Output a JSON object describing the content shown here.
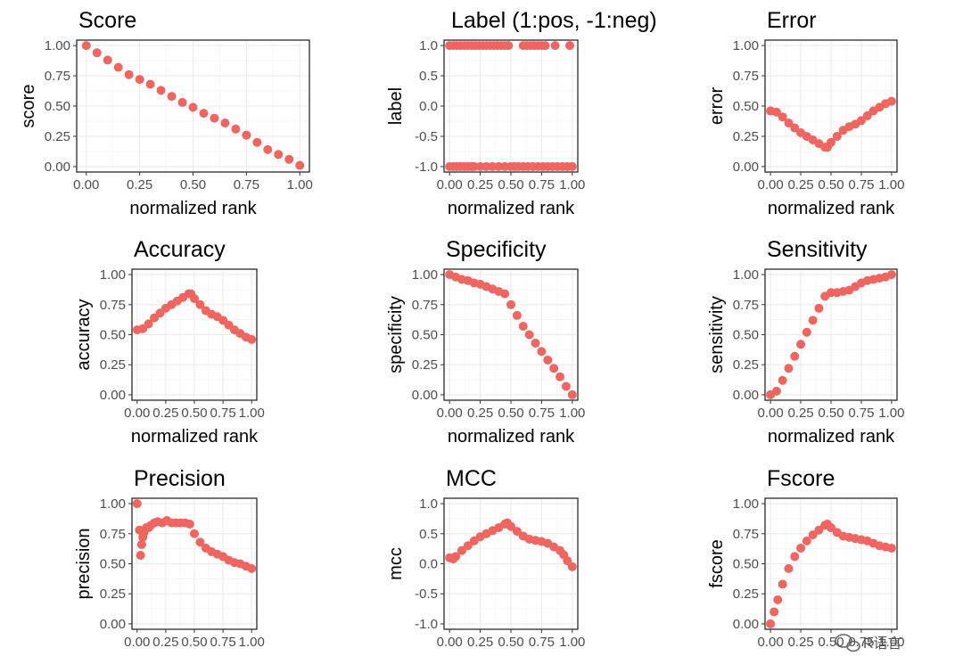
{
  "chart_data": [
    {
      "type": "scatter",
      "title": "Score",
      "xlabel": "normalized rank",
      "ylabel": "score",
      "xlim": [
        0,
        1
      ],
      "ylim": [
        0,
        1
      ],
      "xticks": [
        "0.00",
        "0.25",
        "0.50",
        "0.75",
        "1.00"
      ],
      "yticks": [
        "0.00",
        "0.25",
        "0.50",
        "0.75",
        "1.00"
      ],
      "series": [
        {
          "x": [
            0.0,
            0.05,
            0.1,
            0.15,
            0.2,
            0.25,
            0.3,
            0.35,
            0.4,
            0.45,
            0.5,
            0.55,
            0.6,
            0.65,
            0.7,
            0.75,
            0.8,
            0.85,
            0.9,
            0.95,
            1.0
          ],
          "y": [
            1.0,
            0.94,
            0.88,
            0.82,
            0.76,
            0.72,
            0.68,
            0.63,
            0.58,
            0.53,
            0.49,
            0.44,
            0.4,
            0.36,
            0.31,
            0.26,
            0.2,
            0.14,
            0.1,
            0.06,
            0.01
          ]
        }
      ]
    },
    {
      "type": "scatter",
      "title": "Label (1:pos, -1:neg)",
      "xlabel": "normalized rank",
      "ylabel": "label",
      "xlim": [
        0,
        1
      ],
      "ylim": [
        -1,
        1
      ],
      "xticks": [
        "0.00",
        "0.25",
        "0.50",
        "0.75",
        "1.00"
      ],
      "yticks": [
        "-1.0",
        "-0.5",
        "0.0",
        "0.5",
        "1.0"
      ],
      "series": [
        {
          "x": [
            0.0,
            0.03,
            0.06,
            0.09,
            0.12,
            0.15,
            0.18,
            0.21,
            0.24,
            0.27,
            0.3,
            0.33,
            0.36,
            0.39,
            0.42,
            0.45,
            0.48,
            0.6,
            0.63,
            0.66,
            0.69,
            0.72,
            0.75,
            0.78,
            0.86,
            0.98
          ],
          "y": [
            1,
            1,
            1,
            1,
            1,
            1,
            1,
            1,
            1,
            1,
            1,
            1,
            1,
            1,
            1,
            1,
            1,
            1,
            1,
            1,
            1,
            1,
            1,
            1,
            1,
            1
          ]
        },
        {
          "x": [
            0.0,
            0.03,
            0.06,
            0.09,
            0.12,
            0.15,
            0.18,
            0.2,
            0.25,
            0.3,
            0.35,
            0.4,
            0.45,
            0.5,
            0.53,
            0.56,
            0.6,
            0.64,
            0.68,
            0.72,
            0.76,
            0.8,
            0.84,
            0.88,
            0.92,
            0.96,
            1.0
          ],
          "y": [
            -1,
            -1,
            -1,
            -1,
            -1,
            -1,
            -1,
            -1,
            -1,
            -1,
            -1,
            -1,
            -1,
            -1,
            -1,
            -1,
            -1,
            -1,
            -1,
            -1,
            -1,
            -1,
            -1,
            -1,
            -1,
            -1,
            -1
          ]
        }
      ]
    },
    {
      "type": "scatter",
      "title": "Error",
      "xlabel": "normalized rank",
      "ylabel": "error",
      "xlim": [
        0,
        1
      ],
      "ylim": [
        0,
        1
      ],
      "xticks": [
        "0.00",
        "0.25",
        "0.50",
        "0.75",
        "1.00"
      ],
      "yticks": [
        "0.00",
        "0.25",
        "0.50",
        "0.75",
        "1.00"
      ],
      "series": [
        {
          "x": [
            0.0,
            0.05,
            0.1,
            0.15,
            0.2,
            0.25,
            0.3,
            0.35,
            0.4,
            0.45,
            0.47,
            0.5,
            0.55,
            0.6,
            0.65,
            0.7,
            0.75,
            0.8,
            0.85,
            0.9,
            0.95,
            1.0
          ],
          "y": [
            0.46,
            0.45,
            0.41,
            0.36,
            0.32,
            0.28,
            0.25,
            0.22,
            0.19,
            0.16,
            0.16,
            0.2,
            0.25,
            0.3,
            0.33,
            0.35,
            0.38,
            0.42,
            0.46,
            0.49,
            0.52,
            0.54
          ]
        }
      ]
    },
    {
      "type": "scatter",
      "title": "Accuracy",
      "xlabel": "normalized rank",
      "ylabel": "accuracy",
      "xlim": [
        0,
        1
      ],
      "ylim": [
        0,
        1
      ],
      "xticks": [
        "0.00",
        "0.25",
        "0.50",
        "0.75",
        "1.00"
      ],
      "yticks": [
        "0.00",
        "0.25",
        "0.50",
        "0.75",
        "1.00"
      ],
      "series": [
        {
          "x": [
            0.0,
            0.05,
            0.1,
            0.15,
            0.2,
            0.25,
            0.3,
            0.35,
            0.4,
            0.45,
            0.47,
            0.5,
            0.55,
            0.6,
            0.65,
            0.7,
            0.75,
            0.8,
            0.85,
            0.9,
            0.95,
            1.0
          ],
          "y": [
            0.54,
            0.55,
            0.59,
            0.64,
            0.68,
            0.72,
            0.75,
            0.78,
            0.81,
            0.84,
            0.84,
            0.8,
            0.75,
            0.7,
            0.67,
            0.65,
            0.62,
            0.58,
            0.54,
            0.51,
            0.48,
            0.46
          ]
        }
      ]
    },
    {
      "type": "scatter",
      "title": "Specificity",
      "xlabel": "normalized rank",
      "ylabel": "specificity",
      "xlim": [
        0,
        1
      ],
      "ylim": [
        0,
        1
      ],
      "xticks": [
        "0.00",
        "0.25",
        "0.50",
        "0.75",
        "1.00"
      ],
      "yticks": [
        "0.00",
        "0.25",
        "0.50",
        "0.75",
        "1.00"
      ],
      "series": [
        {
          "x": [
            0.0,
            0.05,
            0.1,
            0.15,
            0.2,
            0.25,
            0.3,
            0.35,
            0.4,
            0.45,
            0.5,
            0.55,
            0.6,
            0.65,
            0.7,
            0.75,
            0.8,
            0.85,
            0.9,
            0.95,
            1.0
          ],
          "y": [
            1.0,
            0.98,
            0.96,
            0.95,
            0.93,
            0.92,
            0.9,
            0.88,
            0.86,
            0.84,
            0.75,
            0.66,
            0.57,
            0.5,
            0.43,
            0.36,
            0.29,
            0.22,
            0.15,
            0.07,
            0.0
          ]
        }
      ]
    },
    {
      "type": "scatter",
      "title": "Sensitivity",
      "xlabel": "normalized rank",
      "ylabel": "sensitivity",
      "xlim": [
        0,
        1
      ],
      "ylim": [
        0,
        1
      ],
      "xticks": [
        "0.00",
        "0.25",
        "0.50",
        "0.75",
        "1.00"
      ],
      "yticks": [
        "0.00",
        "0.25",
        "0.50",
        "0.75",
        "1.00"
      ],
      "series": [
        {
          "x": [
            0.0,
            0.05,
            0.1,
            0.15,
            0.2,
            0.25,
            0.3,
            0.35,
            0.4,
            0.45,
            0.5,
            0.55,
            0.6,
            0.65,
            0.7,
            0.75,
            0.8,
            0.85,
            0.9,
            0.95,
            1.0
          ],
          "y": [
            0.0,
            0.03,
            0.12,
            0.22,
            0.32,
            0.42,
            0.52,
            0.62,
            0.72,
            0.82,
            0.85,
            0.85,
            0.86,
            0.87,
            0.9,
            0.93,
            0.95,
            0.96,
            0.97,
            0.98,
            1.0
          ]
        }
      ]
    },
    {
      "type": "scatter",
      "title": "Precision",
      "xlabel": "normalized rank",
      "ylabel": "precision",
      "xlim": [
        0,
        1
      ],
      "ylim": [
        0,
        1
      ],
      "xticks": [
        "0.00",
        "0.25",
        "0.50",
        "0.75",
        "1.00"
      ],
      "yticks": [
        "0.00",
        "0.25",
        "0.50",
        "0.75",
        "1.00"
      ],
      "series": [
        {
          "x": [
            0.0,
            0.02,
            0.03,
            0.04,
            0.05,
            0.06,
            0.08,
            0.1,
            0.12,
            0.15,
            0.18,
            0.22,
            0.26,
            0.3,
            0.34,
            0.38,
            0.42,
            0.46,
            0.5,
            0.55,
            0.6,
            0.65,
            0.7,
            0.75,
            0.8,
            0.85,
            0.9,
            0.95,
            1.0
          ],
          "y": [
            1.0,
            0.78,
            0.57,
            0.66,
            0.72,
            0.76,
            0.8,
            0.8,
            0.82,
            0.84,
            0.85,
            0.84,
            0.86,
            0.84,
            0.84,
            0.84,
            0.84,
            0.83,
            0.75,
            0.68,
            0.63,
            0.6,
            0.58,
            0.56,
            0.53,
            0.51,
            0.5,
            0.48,
            0.46
          ]
        }
      ]
    },
    {
      "type": "scatter",
      "title": "MCC",
      "xlabel": "",
      "ylabel": "mcc",
      "xlim": [
        0,
        1
      ],
      "ylim": [
        -1,
        1
      ],
      "xticks": [
        "0.00",
        "0.25",
        "0.50",
        "0.75",
        "1.00"
      ],
      "yticks": [
        "-1.0",
        "-0.5",
        "0.0",
        "0.5",
        "1.0"
      ],
      "series": [
        {
          "x": [
            0.0,
            0.03,
            0.05,
            0.1,
            0.15,
            0.2,
            0.25,
            0.3,
            0.35,
            0.4,
            0.45,
            0.47,
            0.5,
            0.55,
            0.6,
            0.65,
            0.7,
            0.75,
            0.8,
            0.85,
            0.9,
            0.93,
            0.96,
            1.0
          ],
          "y": [
            0.1,
            0.08,
            0.12,
            0.22,
            0.3,
            0.38,
            0.45,
            0.5,
            0.55,
            0.6,
            0.66,
            0.68,
            0.62,
            0.54,
            0.46,
            0.41,
            0.39,
            0.37,
            0.34,
            0.28,
            0.22,
            0.15,
            0.05,
            -0.05
          ]
        }
      ]
    },
    {
      "type": "scatter",
      "title": "Fscore",
      "xlabel": "",
      "ylabel": "fscore",
      "xlim": [
        0,
        1
      ],
      "ylim": [
        0,
        1
      ],
      "xticks": [
        "0.00",
        "0.25",
        "0.50",
        "0.75",
        "1.00"
      ],
      "yticks": [
        "0.00",
        "0.25",
        "0.50",
        "0.75",
        "1.00"
      ],
      "series": [
        {
          "x": [
            0.0,
            0.03,
            0.06,
            0.1,
            0.15,
            0.2,
            0.25,
            0.3,
            0.35,
            0.4,
            0.45,
            0.47,
            0.5,
            0.55,
            0.6,
            0.65,
            0.7,
            0.75,
            0.8,
            0.85,
            0.9,
            0.95,
            1.0
          ],
          "y": [
            0.0,
            0.1,
            0.2,
            0.33,
            0.46,
            0.56,
            0.63,
            0.69,
            0.74,
            0.78,
            0.82,
            0.83,
            0.8,
            0.76,
            0.73,
            0.72,
            0.71,
            0.7,
            0.69,
            0.67,
            0.65,
            0.64,
            0.63
          ]
        }
      ]
    }
  ],
  "style": {
    "point_color": "#ef6560",
    "panel_border": "#333333",
    "grid_major": "#ebebeb",
    "grid_minor": "#f4f4f4",
    "tick_text": "#4d4d4d"
  },
  "watermark": {
    "text": "R语言",
    "icon": "wechat-icon"
  }
}
